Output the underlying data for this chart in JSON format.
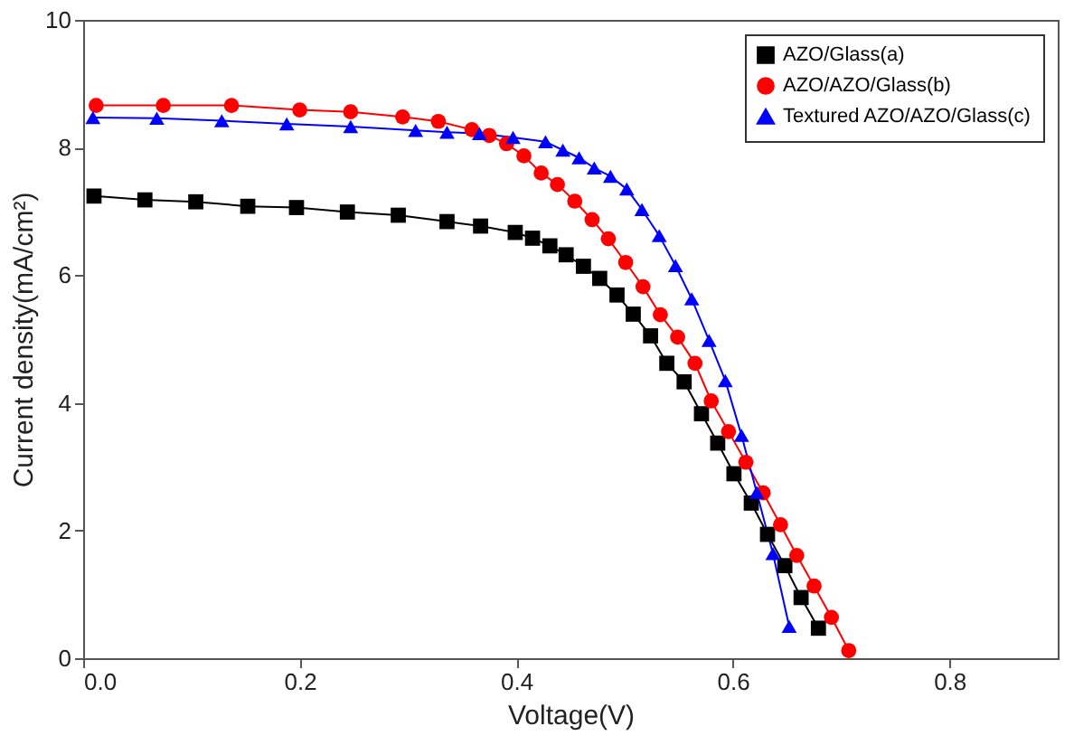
{
  "chart_data": {
    "type": "line",
    "xlabel": "Voltage(V)",
    "ylabel": "Current density(mA/cm²)",
    "xlim": [
      0,
      0.9
    ],
    "xticks": [
      {
        "value": 0,
        "label": "0.0"
      },
      {
        "value": 0.2,
        "label": "0.2"
      },
      {
        "value": 0.4,
        "label": "0.4"
      },
      {
        "value": 0.6,
        "label": "0.6"
      },
      {
        "value": 0.8,
        "label": "0.8"
      }
    ],
    "line_style": "solid",
    "ylim": [
      0,
      10
    ],
    "yticks": [
      0,
      2,
      4,
      6,
      8,
      10
    ],
    "grid": false,
    "legend": "top right",
    "series": [
      {
        "name": "AZO/Glass(a)",
        "color": "#000000",
        "marker": "square",
        "x": [
          0.01,
          0.057,
          0.104,
          0.152,
          0.197,
          0.244,
          0.291,
          0.336,
          0.367,
          0.399,
          0.415,
          0.431,
          0.446,
          0.462,
          0.477,
          0.493,
          0.508,
          0.524,
          0.539,
          0.555,
          0.571,
          0.586,
          0.601,
          0.617,
          0.632,
          0.648,
          0.663,
          0.679
        ],
        "values": [
          7.24,
          7.18,
          7.15,
          7.08,
          7.06,
          6.99,
          6.94,
          6.84,
          6.77,
          6.67,
          6.58,
          6.46,
          6.32,
          6.14,
          5.95,
          5.69,
          5.39,
          5.05,
          4.62,
          4.33,
          3.83,
          3.37,
          2.89,
          2.43,
          1.94,
          1.45,
          0.95,
          0.47
        ]
      },
      {
        "name": "AZO/AZO/Glass(b)",
        "color": "#ff0000",
        "marker": "circle",
        "x": [
          0.012,
          0.074,
          0.137,
          0.2,
          0.247,
          0.295,
          0.328,
          0.359,
          0.375,
          0.391,
          0.407,
          0.423,
          0.438,
          0.454,
          0.47,
          0.485,
          0.501,
          0.517,
          0.533,
          0.549,
          0.565,
          0.58,
          0.596,
          0.612,
          0.628,
          0.644,
          0.659,
          0.675,
          0.691,
          0.707
        ],
        "values": [
          8.66,
          8.66,
          8.66,
          8.59,
          8.56,
          8.48,
          8.41,
          8.28,
          8.19,
          8.06,
          7.87,
          7.6,
          7.42,
          7.16,
          6.87,
          6.57,
          6.2,
          5.82,
          5.38,
          5.03,
          4.62,
          4.03,
          3.55,
          3.07,
          2.59,
          2.09,
          1.61,
          1.13,
          0.64,
          0.12
        ]
      },
      {
        "name": "Textured AZO/AZO/Glass(c)",
        "color": "#0000ff",
        "marker": "triangle",
        "x": [
          0.009,
          0.068,
          0.128,
          0.188,
          0.247,
          0.307,
          0.336,
          0.366,
          0.397,
          0.427,
          0.443,
          0.458,
          0.472,
          0.487,
          0.502,
          0.516,
          0.532,
          0.547,
          0.562,
          0.578,
          0.593,
          0.608,
          0.622,
          0.637,
          0.652
        ],
        "values": [
          8.47,
          8.46,
          8.42,
          8.37,
          8.33,
          8.27,
          8.24,
          8.22,
          8.16,
          8.09,
          7.96,
          7.84,
          7.68,
          7.55,
          7.35,
          7.03,
          6.62,
          6.15,
          5.63,
          4.98,
          4.35,
          3.49,
          2.6,
          1.64,
          0.5
        ]
      }
    ]
  }
}
